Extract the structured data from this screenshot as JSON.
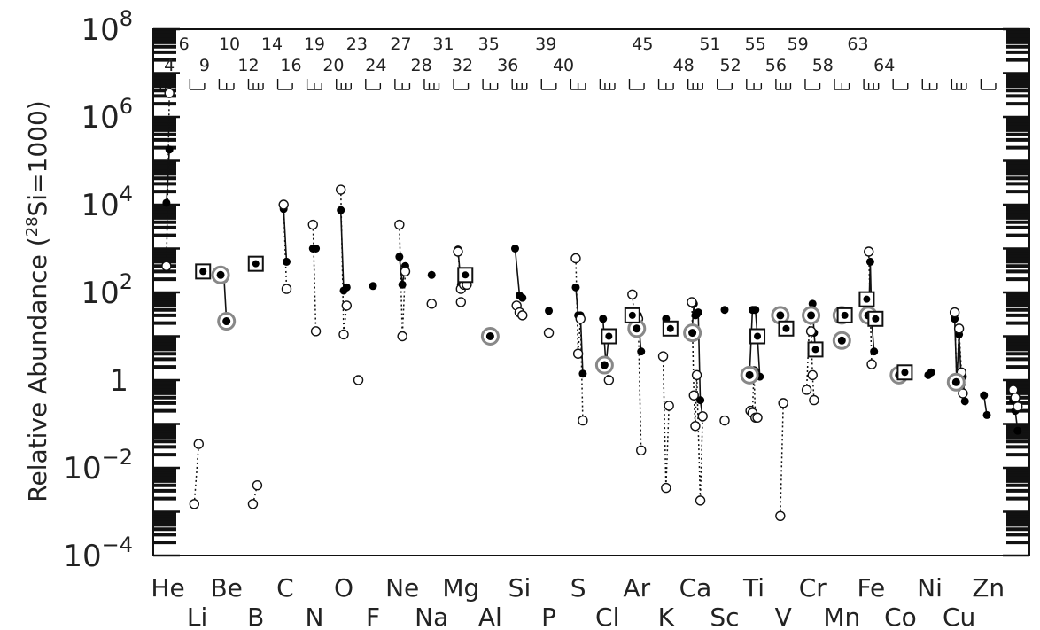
{
  "chart_data": {
    "type": "scatter",
    "title": "",
    "xlabel": "",
    "ylabel_prefix": "Relative Abundance  (",
    "ylabel_sup": "28",
    "ylabel_suffix": "Si=1000)",
    "yscale": "log",
    "ylim": [
      0.0001,
      100000000
    ],
    "xlim": [
      1.5,
      31.4
    ],
    "y_tick_labels": [
      {
        "base": "10",
        "exp": "8",
        "value": 100000000
      },
      {
        "base": "10",
        "exp": "6",
        "value": 1000000
      },
      {
        "base": "10",
        "exp": "4",
        "value": 10000
      },
      {
        "base": "10",
        "exp": "2",
        "value": 100
      },
      {
        "base": "1",
        "exp": "",
        "value": 1
      },
      {
        "base": "10",
        "exp": "−2",
        "value": 0.01
      },
      {
        "base": "10",
        "exp": "−4",
        "value": 0.0001
      }
    ],
    "elements_row1": [
      {
        "z": 2,
        "label": "He"
      },
      {
        "z": 4,
        "label": "Be"
      },
      {
        "z": 6,
        "label": "C"
      },
      {
        "z": 8,
        "label": "O"
      },
      {
        "z": 10,
        "label": "Ne"
      },
      {
        "z": 12,
        "label": "Mg"
      },
      {
        "z": 14,
        "label": "Si"
      },
      {
        "z": 16,
        "label": "S"
      },
      {
        "z": 18,
        "label": "Ar"
      },
      {
        "z": 20,
        "label": "Ca"
      },
      {
        "z": 22,
        "label": "Ti"
      },
      {
        "z": 24,
        "label": "Cr"
      },
      {
        "z": 26,
        "label": "Fe"
      },
      {
        "z": 28,
        "label": "Ni"
      },
      {
        "z": 30,
        "label": "Zn"
      }
    ],
    "elements_row2": [
      {
        "z": 3,
        "label": "Li"
      },
      {
        "z": 5,
        "label": "B"
      },
      {
        "z": 7,
        "label": "N"
      },
      {
        "z": 9,
        "label": "F"
      },
      {
        "z": 11,
        "label": "Na"
      },
      {
        "z": 13,
        "label": "Al"
      },
      {
        "z": 15,
        "label": "P"
      },
      {
        "z": 17,
        "label": "Cl"
      },
      {
        "z": 19,
        "label": "K"
      },
      {
        "z": 21,
        "label": "Sc"
      },
      {
        "z": 23,
        "label": "V"
      },
      {
        "z": 25,
        "label": "Mn"
      },
      {
        "z": 27,
        "label": "Co"
      },
      {
        "z": 29,
        "label": "Cu"
      }
    ],
    "mass_labels_row1": [
      {
        "z": 2.55,
        "label": "6"
      },
      {
        "z": 4.1,
        "label": "10"
      },
      {
        "z": 5.55,
        "label": "14"
      },
      {
        "z": 7.0,
        "label": "19"
      },
      {
        "z": 8.45,
        "label": "23"
      },
      {
        "z": 9.95,
        "label": "27"
      },
      {
        "z": 11.4,
        "label": "31"
      },
      {
        "z": 12.95,
        "label": "35"
      },
      {
        "z": 14.9,
        "label": "39"
      },
      {
        "z": 18.2,
        "label": "45"
      },
      {
        "z": 20.5,
        "label": "51"
      },
      {
        "z": 22.05,
        "label": "55"
      },
      {
        "z": 23.5,
        "label": "59"
      },
      {
        "z": 25.55,
        "label": "63"
      }
    ],
    "mass_labels_row2": [
      {
        "z": 2.05,
        "label": "4"
      },
      {
        "z": 3.25,
        "label": "9"
      },
      {
        "z": 4.75,
        "label": "12"
      },
      {
        "z": 6.2,
        "label": "16"
      },
      {
        "z": 7.65,
        "label": "20"
      },
      {
        "z": 9.1,
        "label": "24"
      },
      {
        "z": 10.65,
        "label": "28"
      },
      {
        "z": 12.05,
        "label": "32"
      },
      {
        "z": 13.6,
        "label": "36"
      },
      {
        "z": 15.5,
        "label": "40"
      },
      {
        "z": 19.6,
        "label": "48"
      },
      {
        "z": 21.2,
        "label": "52"
      },
      {
        "z": 22.75,
        "label": "56"
      },
      {
        "z": 24.35,
        "label": "58"
      },
      {
        "z": 26.45,
        "label": "64"
      }
    ],
    "series": [
      {
        "marker": "filled-circle",
        "line": "solid",
        "segments": [
          [
            [
              1.95,
              11000
            ],
            [
              2.05,
              180000
            ]
          ],
          [
            [
              3.78,
              250
            ],
            [
              3.92,
              200
            ],
            [
              4.0,
              22
            ]
          ],
          [
            [
              5.95,
              8000
            ],
            [
              6.05,
              500
            ]
          ],
          [
            [
              6.95,
              1000
            ],
            [
              7.05,
              1000
            ]
          ],
          [
            [
              7.9,
              7500
            ],
            [
              8.0,
              110
            ],
            [
              8.1,
              130
            ]
          ],
          [
            [
              9.9,
              650
            ],
            [
              10.0,
              150
            ],
            [
              10.1,
              400
            ]
          ],
          [
            [
              11.9,
              950
            ],
            [
              12.0,
              150
            ],
            [
              12.1,
              260
            ]
          ],
          [
            [
              13.85,
              1000
            ],
            [
              14.0,
              85
            ],
            [
              14.1,
              75
            ]
          ],
          [
            [
              15.92,
              130
            ],
            [
              16.0,
              30
            ],
            [
              16.08,
              30
            ],
            [
              16.16,
              1.4
            ]
          ],
          [
            [
              16.85,
              25
            ],
            [
              16.95,
              2.2
            ],
            [
              17.05,
              10
            ]
          ],
          [
            [
              17.85,
              30
            ],
            [
              17.95,
              16
            ],
            [
              18.05,
              30
            ],
            [
              18.15,
              4.5
            ]
          ],
          [
            [
              19.0,
              25
            ],
            [
              19.1,
              15
            ]
          ],
          [
            [
              19.88,
              12
            ],
            [
              19.95,
              55
            ],
            [
              20.0,
              30
            ],
            [
              20.05,
              32
            ],
            [
              20.1,
              35
            ],
            [
              20.17,
              0.35
            ],
            [
              20.25,
              0.14
            ]
          ],
          [
            [
              21.85,
              1.3
            ],
            [
              21.95,
              40
            ],
            [
              22.0,
              40
            ],
            [
              22.05,
              40
            ],
            [
              22.12,
              10
            ],
            [
              22.2,
              1.2
            ]
          ],
          [
            [
              22.9,
              30
            ],
            [
              23.0,
              15
            ]
          ],
          [
            [
              23.9,
              25
            ],
            [
              23.95,
              30
            ],
            [
              24.0,
              55
            ],
            [
              24.05,
              12
            ],
            [
              24.1,
              5
            ]
          ],
          [
            [
              25.85,
              70
            ],
            [
              25.92,
              30
            ],
            [
              25.97,
              500
            ],
            [
              26.02,
              22
            ],
            [
              26.1,
              4.5
            ]
          ],
          [
            [
              27.95,
              1.3
            ],
            [
              28.05,
              1.5
            ]
          ],
          [
            [
              28.85,
              25
            ],
            [
              28.92,
              0.9
            ],
            [
              29.0,
              11
            ],
            [
              29.08,
              0.8
            ],
            [
              29.13,
              1.2
            ],
            [
              29.2,
              0.33
            ]
          ],
          [
            [
              29.85,
              0.45
            ],
            [
              29.95,
              0.16
            ]
          ],
          [
            [
              30.85,
              0.35
            ],
            [
              30.92,
              0.2
            ],
            [
              31.0,
              0.07
            ]
          ]
        ],
        "points": [
          [
            9.0,
            140
          ],
          [
            11.0,
            250
          ],
          [
            15.0,
            38
          ],
          [
            21.0,
            40
          ]
        ]
      },
      {
        "marker": "open-circle",
        "line": "dotted",
        "segments": [
          [
            [
              1.95,
              400
            ],
            [
              2.05,
              3500000
            ]
          ],
          [
            [
              2.9,
              0.0015
            ],
            [
              3.05,
              0.035
            ]
          ],
          [
            [
              4.9,
              0.0015
            ],
            [
              5.05,
              0.004
            ]
          ],
          [
            [
              5.95,
              10000
            ],
            [
              6.05,
              120
            ]
          ],
          [
            [
              6.95,
              3500
            ],
            [
              7.05,
              13
            ]
          ],
          [
            [
              7.9,
              22000
            ],
            [
              8.0,
              11
            ],
            [
              8.1,
              50
            ]
          ],
          [
            [
              9.9,
              3500
            ],
            [
              10.0,
              10
            ],
            [
              10.1,
              300
            ]
          ],
          [
            [
              11.9,
              850
            ],
            [
              12.0,
              120
            ],
            [
              12.1,
              150
            ]
          ],
          [
            [
              13.9,
              50
            ],
            [
              14.0,
              35
            ]
          ],
          [
            [
              15.92,
              600
            ],
            [
              16.0,
              4
            ],
            [
              16.08,
              25
            ],
            [
              16.16,
              0.12
            ]
          ],
          [
            [
              16.85,
              2.5
            ],
            [
              16.95,
              2.0
            ],
            [
              17.05,
              1.0
            ]
          ],
          [
            [
              17.85,
              90
            ],
            [
              17.95,
              15
            ],
            [
              18.05,
              25
            ],
            [
              18.15,
              0.025
            ]
          ],
          [
            [
              18.9,
              3.5
            ],
            [
              19.0,
              0.0035
            ],
            [
              19.1,
              0.26
            ]
          ],
          [
            [
              19.88,
              60
            ],
            [
              19.95,
              0.45
            ],
            [
              20.0,
              0.09
            ],
            [
              20.05,
              1.3
            ],
            [
              20.17,
              0.0018
            ],
            [
              20.25,
              0.15
            ]
          ],
          [
            [
              21.88,
              0.2
            ],
            [
              21.95,
              0.18
            ],
            [
              22.0,
              1.6
            ],
            [
              22.05,
              0.14
            ],
            [
              22.12,
              0.14
            ]
          ],
          [
            [
              22.9,
              0.0008
            ],
            [
              23.0,
              0.3
            ]
          ],
          [
            [
              23.8,
              0.6
            ],
            [
              23.9,
              25
            ],
            [
              23.95,
              13
            ],
            [
              24.0,
              1.3
            ],
            [
              24.05,
              0.35
            ]
          ],
          [
            [
              25.92,
              850
            ],
            [
              26.02,
              2.3
            ]
          ],
          [
            [
              28.85,
              35
            ],
            [
              28.92,
              0.8
            ],
            [
              29.0,
              15
            ],
            [
              29.08,
              1.5
            ],
            [
              29.13,
              0.5
            ]
          ],
          [
            [
              30.85,
              0.6
            ],
            [
              30.92,
              0.4
            ],
            [
              31.0,
              0.25
            ]
          ]
        ],
        "points": [
          [
            8.5,
            1.0
          ],
          [
            11.0,
            55
          ],
          [
            12.0,
            60
          ],
          [
            12.2,
            150
          ],
          [
            14.1,
            30
          ],
          [
            15.0,
            12
          ],
          [
            21.0,
            0.12
          ]
        ]
      },
      {
        "marker": "ringed-point",
        "points": [
          [
            3.8,
            250
          ],
          [
            4.0,
            22
          ],
          [
            13.0,
            10
          ],
          [
            16.9,
            2.2
          ],
          [
            18.0,
            15
          ],
          [
            19.9,
            12
          ],
          [
            21.85,
            1.3
          ],
          [
            22.9,
            30
          ],
          [
            23.95,
            30
          ],
          [
            25.0,
            8
          ],
          [
            25.0,
            30
          ],
          [
            25.9,
            30
          ],
          [
            26.95,
            1.3
          ],
          [
            28.9,
            0.9
          ]
        ]
      },
      {
        "marker": "boxed-point",
        "points": [
          [
            3.2,
            300
          ],
          [
            5.0,
            450
          ],
          [
            12.15,
            250
          ],
          [
            17.05,
            10
          ],
          [
            17.85,
            30
          ],
          [
            19.15,
            15
          ],
          [
            22.12,
            10
          ],
          [
            23.1,
            15
          ],
          [
            24.1,
            5
          ],
          [
            25.1,
            30
          ],
          [
            25.85,
            70
          ],
          [
            26.15,
            25
          ],
          [
            27.15,
            1.5
          ]
        ]
      }
    ]
  }
}
